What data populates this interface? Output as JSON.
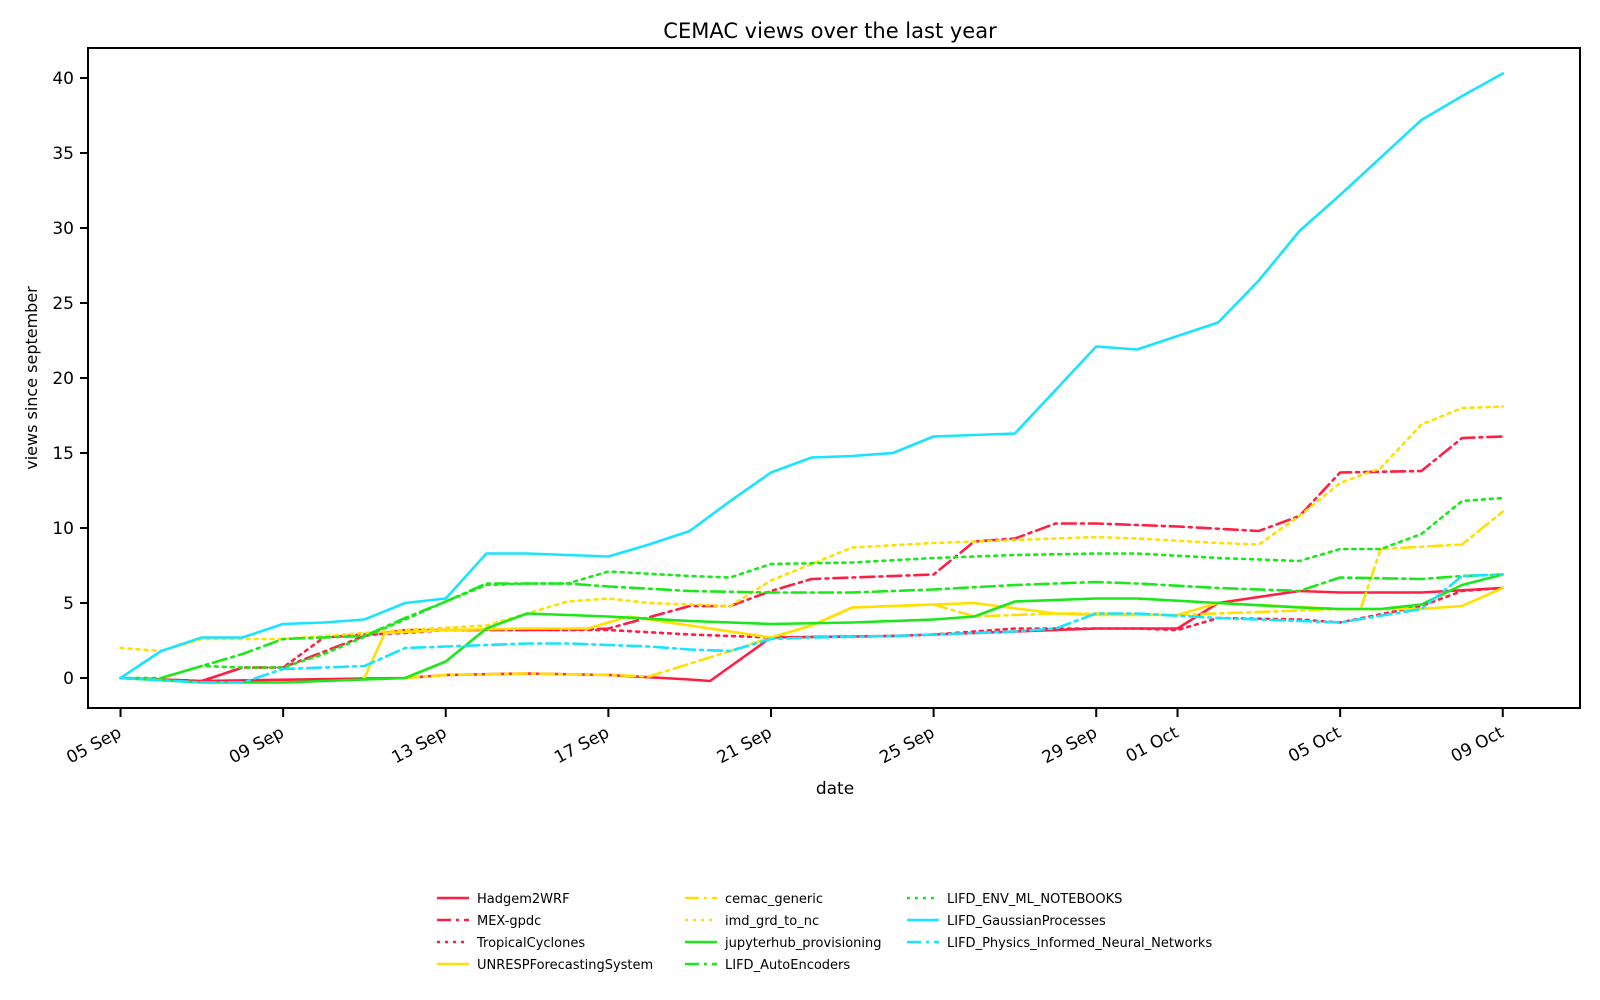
{
  "chart_data": {
    "type": "line",
    "title": "CEMAC views over the last year",
    "xlabel": "date",
    "ylabel": "views since september",
    "ylim": [
      -2,
      42
    ],
    "yticks": [
      0,
      5,
      10,
      15,
      20,
      25,
      30,
      35,
      40
    ],
    "xlim": [
      4.2,
      40.9
    ],
    "xticks": [
      {
        "day": 5,
        "label": "05 Sep"
      },
      {
        "day": 9,
        "label": "09 Sep"
      },
      {
        "day": 13,
        "label": "13 Sep"
      },
      {
        "day": 17,
        "label": "17 Sep"
      },
      {
        "day": 21,
        "label": "21 Sep"
      },
      {
        "day": 25,
        "label": "25 Sep"
      },
      {
        "day": 29,
        "label": "29 Sep"
      },
      {
        "day": 31,
        "label": "01 Oct"
      },
      {
        "day": 35,
        "label": "05 Oct"
      },
      {
        "day": 39,
        "label": "09 Oct"
      }
    ],
    "legend": "bottom",
    "series": [
      {
        "name": "Hadgem2WRF",
        "color": "#ff1f44",
        "dash": "solid",
        "points": [
          [
            5,
            0
          ],
          [
            7,
            -0.2
          ],
          [
            12,
            0
          ],
          [
            13,
            0.2
          ],
          [
            15,
            0.3
          ],
          [
            17,
            0.2
          ],
          [
            19,
            -0.1
          ],
          [
            19.5,
            -0.2
          ],
          [
            21,
            2.7
          ],
          [
            24,
            2.8
          ],
          [
            25,
            2.9
          ],
          [
            29,
            3.3
          ],
          [
            31,
            3.3
          ],
          [
            32,
            5.0
          ],
          [
            34,
            5.8
          ],
          [
            35,
            5.7
          ],
          [
            37,
            5.7
          ],
          [
            39,
            6.0
          ]
        ]
      },
      {
        "name": "MEX-gpdc",
        "color": "#ff1f44",
        "dash": "dashdot",
        "points": [
          [
            5,
            0
          ],
          [
            7,
            -0.2
          ],
          [
            8,
            0.7
          ],
          [
            9,
            0.7
          ],
          [
            11,
            2.8
          ],
          [
            12,
            3.2
          ],
          [
            16,
            3.2
          ],
          [
            17,
            3.3
          ],
          [
            19,
            4.8
          ],
          [
            20,
            4.8
          ],
          [
            21,
            5.8
          ],
          [
            22,
            6.6
          ],
          [
            25,
            6.9
          ],
          [
            26,
            9.1
          ],
          [
            27,
            9.3
          ],
          [
            28,
            10.3
          ],
          [
            29,
            10.3
          ],
          [
            31,
            10.1
          ],
          [
            33,
            9.8
          ],
          [
            34,
            10.8
          ],
          [
            35,
            13.7
          ],
          [
            37,
            13.8
          ],
          [
            38,
            16.0
          ],
          [
            39,
            16.1
          ]
        ]
      },
      {
        "name": "TropicalCyclones",
        "color": "#ff1f44",
        "dash": "dotted",
        "points": [
          [
            5,
            0
          ],
          [
            7,
            -0.2
          ],
          [
            8,
            0.7
          ],
          [
            9,
            0.7
          ],
          [
            10,
            2.7
          ],
          [
            11,
            2.9
          ],
          [
            12,
            3.0
          ],
          [
            13,
            3.2
          ],
          [
            17,
            3.2
          ],
          [
            19,
            2.9
          ],
          [
            20,
            2.8
          ],
          [
            21,
            2.7
          ],
          [
            24,
            2.8
          ],
          [
            25,
            2.9
          ],
          [
            26,
            3.1
          ],
          [
            27,
            3.3
          ],
          [
            29,
            3.3
          ],
          [
            30,
            3.3
          ],
          [
            31,
            3.2
          ],
          [
            32,
            4.0
          ],
          [
            34,
            3.9
          ],
          [
            35,
            3.7
          ],
          [
            37,
            4.8
          ],
          [
            38,
            5.8
          ],
          [
            39,
            6.0
          ]
        ]
      },
      {
        "name": "UNRESPForecastingSystem",
        "color": "#ffe000",
        "dash": "solid",
        "points": [
          [
            11,
            0
          ],
          [
            11.5,
            3.0
          ],
          [
            13,
            3.2
          ],
          [
            15,
            3.3
          ],
          [
            16.5,
            3.3
          ],
          [
            17.5,
            4.1
          ],
          [
            21,
            2.7
          ],
          [
            22,
            3.5
          ],
          [
            23,
            4.7
          ],
          [
            26,
            5.0
          ],
          [
            28,
            4.3
          ],
          [
            29,
            4.2
          ],
          [
            31,
            4.2
          ],
          [
            32,
            5.0
          ],
          [
            35,
            4.6
          ],
          [
            37,
            4.6
          ],
          [
            38,
            4.8
          ],
          [
            39,
            6.0
          ]
        ]
      },
      {
        "name": "cemac_generic",
        "color": "#ffe000",
        "dash": "dashdot",
        "points": [
          [
            12,
            0
          ],
          [
            13,
            0.2
          ],
          [
            15,
            0.3
          ],
          [
            17,
            0.2
          ],
          [
            18,
            0.1
          ],
          [
            20,
            1.8
          ],
          [
            21,
            2.7
          ],
          [
            22,
            3.5
          ],
          [
            23,
            4.7
          ],
          [
            25,
            4.9
          ],
          [
            26,
            4.1
          ],
          [
            28,
            4.3
          ],
          [
            29,
            4.3
          ],
          [
            31,
            4.2
          ],
          [
            35,
            4.6
          ],
          [
            35.5,
            4.6
          ],
          [
            36,
            8.6
          ],
          [
            38,
            8.9
          ],
          [
            39,
            11.1
          ]
        ]
      },
      {
        "name": "imd_grd_to_nc",
        "color": "#ffe000",
        "dash": "dotted",
        "points": [
          [
            5,
            2.0
          ],
          [
            6,
            1.8
          ],
          [
            7,
            2.6
          ],
          [
            9,
            2.6
          ],
          [
            12,
            3.2
          ],
          [
            14,
            3.5
          ],
          [
            16,
            5.1
          ],
          [
            17,
            5.3
          ],
          [
            18,
            5.0
          ],
          [
            20,
            4.8
          ],
          [
            21,
            6.5
          ],
          [
            22,
            7.6
          ],
          [
            23,
            8.7
          ],
          [
            25,
            9.0
          ],
          [
            26,
            9.1
          ],
          [
            28,
            9.3
          ],
          [
            29,
            9.4
          ],
          [
            30,
            9.3
          ],
          [
            32,
            9.0
          ],
          [
            33,
            8.9
          ],
          [
            34,
            10.8
          ],
          [
            35,
            13.0
          ],
          [
            36,
            14.0
          ],
          [
            37,
            16.9
          ],
          [
            38,
            18.0
          ],
          [
            39,
            18.1
          ]
        ]
      },
      {
        "name": "jupyterhub_provisioning",
        "color": "#1be81b",
        "dash": "solid",
        "points": [
          [
            5,
            0
          ],
          [
            7,
            -0.3
          ],
          [
            8,
            -0.3
          ],
          [
            9,
            -0.3
          ],
          [
            10,
            -0.2
          ],
          [
            12,
            0
          ],
          [
            13,
            1.1
          ],
          [
            14,
            3.3
          ],
          [
            15,
            4.3
          ],
          [
            17,
            4.1
          ],
          [
            19,
            3.8
          ],
          [
            21,
            3.6
          ],
          [
            23,
            3.7
          ],
          [
            25,
            3.9
          ],
          [
            26,
            4.1
          ],
          [
            27,
            5.1
          ],
          [
            29,
            5.3
          ],
          [
            30,
            5.3
          ],
          [
            32,
            5.0
          ],
          [
            34,
            4.7
          ],
          [
            35,
            4.6
          ],
          [
            36,
            4.6
          ],
          [
            37,
            4.9
          ],
          [
            38,
            6.2
          ],
          [
            39,
            6.9
          ]
        ]
      },
      {
        "name": "LIFD_AutoEncoders",
        "color": "#1be81b",
        "dash": "dashdot",
        "points": [
          [
            6,
            0
          ],
          [
            7,
            0.8
          ],
          [
            8,
            1.6
          ],
          [
            9,
            2.6
          ],
          [
            10,
            2.7
          ],
          [
            11,
            2.8
          ],
          [
            12,
            4.0
          ],
          [
            13,
            5.1
          ],
          [
            14,
            6.3
          ],
          [
            16,
            6.3
          ],
          [
            17,
            6.1
          ],
          [
            19,
            5.8
          ],
          [
            21,
            5.7
          ],
          [
            23,
            5.7
          ],
          [
            25,
            5.9
          ],
          [
            27,
            6.2
          ],
          [
            29,
            6.4
          ],
          [
            30,
            6.3
          ],
          [
            32,
            6.0
          ],
          [
            34,
            5.8
          ],
          [
            35,
            6.7
          ],
          [
            37,
            6.6
          ],
          [
            38,
            6.8
          ],
          [
            39,
            6.9
          ]
        ]
      },
      {
        "name": "LIFD_ENV_ML_NOTEBOOKS",
        "color": "#1be81b",
        "dash": "dotted",
        "points": [
          [
            5,
            0
          ],
          [
            6,
            0
          ],
          [
            7,
            0.8
          ],
          [
            8,
            0.7
          ],
          [
            9,
            0.7
          ],
          [
            10,
            1.6
          ],
          [
            12,
            3.9
          ],
          [
            13,
            5.1
          ],
          [
            14,
            6.2
          ],
          [
            15,
            6.3
          ],
          [
            16,
            6.3
          ],
          [
            17,
            7.1
          ],
          [
            19,
            6.8
          ],
          [
            20,
            6.7
          ],
          [
            21,
            7.6
          ],
          [
            23,
            7.7
          ],
          [
            25,
            8.0
          ],
          [
            27,
            8.2
          ],
          [
            29,
            8.3
          ],
          [
            30,
            8.3
          ],
          [
            32,
            8.0
          ],
          [
            34,
            7.8
          ],
          [
            35,
            8.6
          ],
          [
            36,
            8.6
          ],
          [
            37,
            9.6
          ],
          [
            38,
            11.8
          ],
          [
            39,
            12.0
          ]
        ]
      },
      {
        "name": "LIFD_GaussianProcesses",
        "color": "#19e3ff",
        "dash": "solid",
        "points": [
          [
            5,
            0
          ],
          [
            6,
            1.8
          ],
          [
            7,
            2.7
          ],
          [
            8,
            2.7
          ],
          [
            9,
            3.6
          ],
          [
            10,
            3.7
          ],
          [
            11,
            3.9
          ],
          [
            12,
            5.0
          ],
          [
            13,
            5.3
          ],
          [
            14,
            8.3
          ],
          [
            15,
            8.3
          ],
          [
            16,
            8.2
          ],
          [
            17,
            8.1
          ],
          [
            18,
            8.9
          ],
          [
            19,
            9.8
          ],
          [
            20,
            11.8
          ],
          [
            21,
            13.7
          ],
          [
            22,
            14.7
          ],
          [
            23,
            14.8
          ],
          [
            24,
            15.0
          ],
          [
            25,
            16.1
          ],
          [
            26,
            16.2
          ],
          [
            27,
            16.3
          ],
          [
            28,
            19.2
          ],
          [
            29,
            22.1
          ],
          [
            30,
            21.9
          ],
          [
            31,
            22.8
          ],
          [
            32,
            23.7
          ],
          [
            33,
            26.5
          ],
          [
            34,
            29.8
          ],
          [
            35,
            32.2
          ],
          [
            36,
            34.7
          ],
          [
            37,
            37.2
          ],
          [
            38,
            38.8
          ],
          [
            39,
            40.3
          ]
        ]
      },
      {
        "name": "LIFD_Physics_Informed_Neural_Networks",
        "color": "#19e3ff",
        "dash": "dashdot",
        "points": [
          [
            5,
            0
          ],
          [
            7,
            -0.3
          ],
          [
            8,
            -0.3
          ],
          [
            9,
            0.6
          ],
          [
            10,
            0.7
          ],
          [
            11,
            0.8
          ],
          [
            12,
            2.0
          ],
          [
            13,
            2.1
          ],
          [
            14,
            2.2
          ],
          [
            15,
            2.3
          ],
          [
            16,
            2.3
          ],
          [
            17,
            2.2
          ],
          [
            18,
            2.1
          ],
          [
            19,
            1.9
          ],
          [
            20,
            1.8
          ],
          [
            21,
            2.6
          ],
          [
            22,
            2.7
          ],
          [
            24,
            2.8
          ],
          [
            25,
            2.9
          ],
          [
            27,
            3.1
          ],
          [
            28,
            3.3
          ],
          [
            29,
            4.3
          ],
          [
            30,
            4.3
          ],
          [
            32,
            4.0
          ],
          [
            34,
            3.8
          ],
          [
            35,
            3.7
          ],
          [
            37,
            4.6
          ],
          [
            38,
            6.8
          ],
          [
            39,
            6.9
          ]
        ]
      }
    ]
  }
}
